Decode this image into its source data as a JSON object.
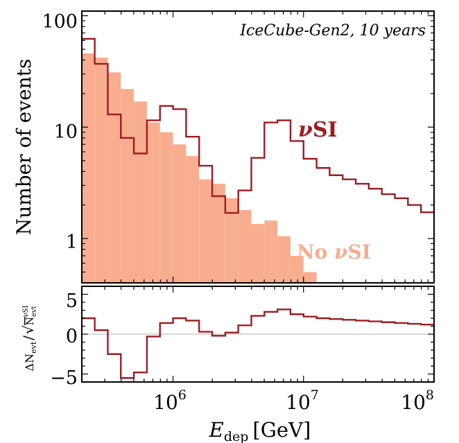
{
  "colors": {
    "nusi": "#9e1b20",
    "no_nusi": "#f9ad8f",
    "axis": "#000000",
    "zero_line": "#b0b0b0"
  },
  "chart_data": [
    {
      "panel": "top",
      "type": "histogram",
      "x_scale": "log",
      "y_scale": "log",
      "xlim": [
        200000,
        100000000
      ],
      "ylim": [
        0.4,
        110
      ],
      "ylabel": "Number of events",
      "annotation": "IceCube-Gen2, 10 years",
      "bin_edges": [
        200000,
        251189,
        316228,
        398107,
        501187,
        630957,
        794328,
        1000000,
        1258925,
        1584893,
        1995262,
        2511886,
        3162278,
        3981072,
        5011872,
        6309573,
        7943282,
        10000000,
        12589254,
        15848932,
        19952623,
        25118864,
        31622777,
        39810717,
        50118723,
        63095734,
        79432823,
        100000000
      ],
      "series": [
        {
          "name": "No νSI",
          "label_prefix": "No ",
          "label_symbol": "ν",
          "label_suffix": "SI",
          "style": "filled",
          "values": [
            46,
            42,
            31,
            22,
            17,
            11,
            9,
            7,
            5.5,
            3.4,
            3.1,
            2.3,
            1.8,
            1.35,
            1.45,
            1.05,
            0.7,
            0.5
          ]
        },
        {
          "name": "νSI",
          "label_symbol": "ν",
          "label_suffix": "SI",
          "style": "step",
          "values": [
            62,
            37,
            13,
            8,
            5.8,
            11.5,
            15.5,
            14.5,
            8.2,
            4.5,
            2.4,
            1.7,
            2.7,
            5.3,
            11,
            11.5,
            7.5,
            5.2,
            4.3,
            3.7,
            3.4,
            3.1,
            2.8,
            2.5,
            2.3,
            2.0,
            1.72
          ]
        }
      ],
      "yticks": [
        1,
        10,
        100
      ],
      "ytick_labels": [
        "1",
        "10",
        "100"
      ]
    },
    {
      "panel": "bottom",
      "type": "step",
      "x_scale": "log",
      "xlim": [
        200000,
        100000000
      ],
      "ylim": [
        -6,
        6
      ],
      "ylabel": "ΔN_evt / √N_evt^νSI",
      "ylabel_parts": {
        "num": "ΔN",
        "num_sub": "evt",
        "slash": "/",
        "den": "N",
        "den_sub": "evt",
        "den_sup": "νSI"
      },
      "xlabel": "E_dep [GeV]",
      "xlabel_parts": {
        "main": "E",
        "sub": "dep",
        "unit": "[GeV]"
      },
      "series": [
        {
          "name": "νSI",
          "values": [
            2.0,
            0.5,
            -2.5,
            -5.5,
            -4.8,
            -0.3,
            1.4,
            2.0,
            1.7,
            0.3,
            -0.2,
            0.2,
            1.1,
            2.3,
            2.8,
            3.1,
            2.5,
            2.2,
            2.0,
            1.9,
            1.8,
            1.7,
            1.6,
            1.5,
            1.4,
            1.3,
            1.2
          ]
        }
      ],
      "yticks": [
        -5,
        0,
        5
      ],
      "ytick_labels": [
        "−5",
        "0",
        "5"
      ],
      "xticks": [
        1000000,
        10000000,
        100000000
      ],
      "xtick_labels": [
        {
          "base": "10",
          "exp": "6"
        },
        {
          "base": "10",
          "exp": "7"
        },
        {
          "base": "10",
          "exp": "8"
        }
      ]
    }
  ]
}
